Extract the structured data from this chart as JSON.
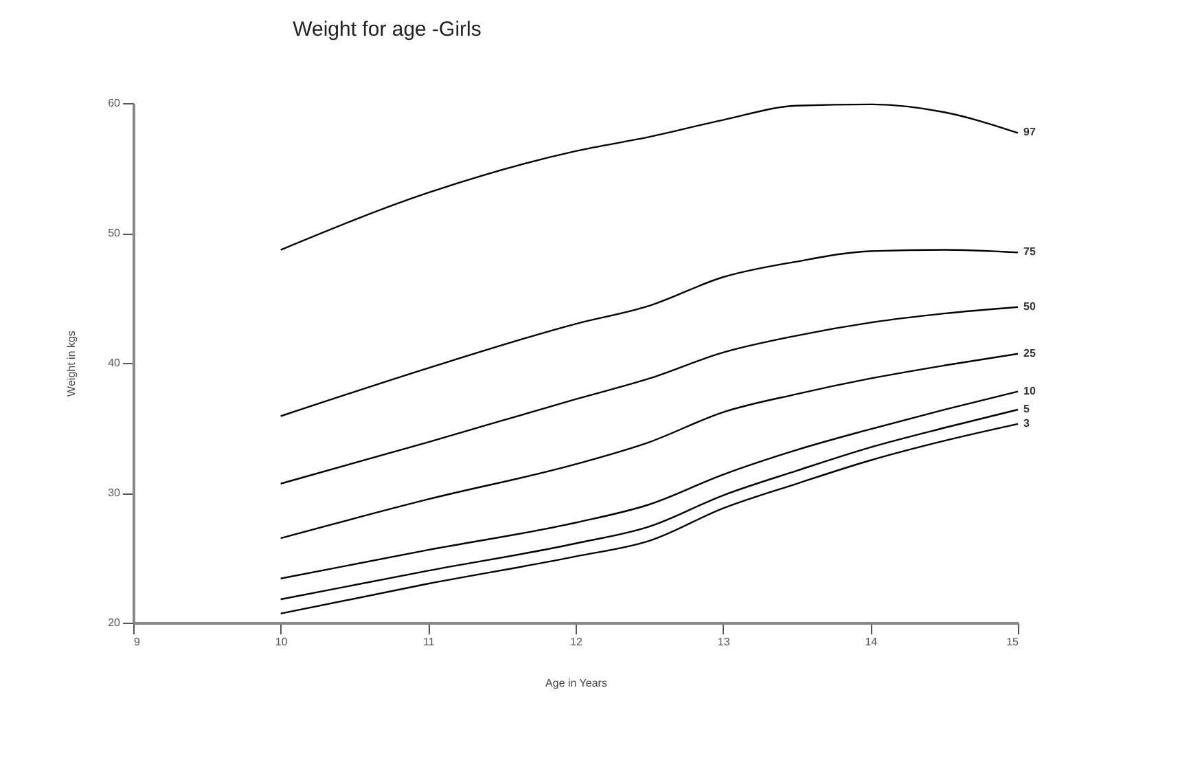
{
  "chart_data": {
    "type": "line",
    "title": "Weight for age -Girls",
    "xlabel": "Age in Years",
    "ylabel": "Weight in kgs",
    "x": [
      10,
      11,
      12,
      12.5,
      13,
      13.5,
      14,
      14.5,
      15
    ],
    "series": [
      {
        "name": "97",
        "color": "#000000",
        "values": [
          48.7,
          53.1,
          56.3,
          57.4,
          58.7,
          59.8,
          59.9,
          59.3,
          57.7
        ]
      },
      {
        "name": "75",
        "color": "#000000",
        "values": [
          35.9,
          39.6,
          43.0,
          44.4,
          46.6,
          47.8,
          48.6,
          48.7,
          48.5
        ]
      },
      {
        "name": "50",
        "color": "#000000",
        "values": [
          30.7,
          33.9,
          37.2,
          38.8,
          40.8,
          42.1,
          43.1,
          43.8,
          44.3
        ]
      },
      {
        "name": "25",
        "color": "#000000",
        "values": [
          26.5,
          29.5,
          32.2,
          33.9,
          36.2,
          37.6,
          38.8,
          39.8,
          40.7
        ]
      },
      {
        "name": "10",
        "color": "#000000",
        "values": [
          23.4,
          25.6,
          27.7,
          29.1,
          31.4,
          33.3,
          34.9,
          36.4,
          37.8
        ]
      },
      {
        "name": "5",
        "color": "#000000",
        "values": [
          21.8,
          24.0,
          26.1,
          27.4,
          29.8,
          31.7,
          33.5,
          35.0,
          36.4
        ]
      },
      {
        "name": "3",
        "color": "#000000",
        "values": [
          20.7,
          23.0,
          25.1,
          26.3,
          28.8,
          30.7,
          32.5,
          34.0,
          35.3
        ]
      }
    ],
    "xlim": [
      9,
      15
    ],
    "xticks": [
      9,
      10,
      11,
      12,
      13,
      14,
      15
    ],
    "ylim": [
      20,
      60
    ],
    "yticks": [
      20,
      30,
      40,
      50,
      60
    ],
    "grid": false,
    "marker": "none",
    "line_style": "solid"
  }
}
